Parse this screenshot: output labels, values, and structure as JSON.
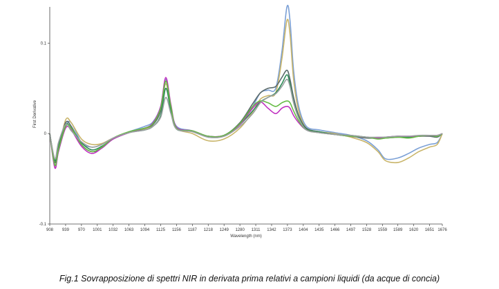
{
  "caption": "Fig.1 Sovrapposizione di spettri NIR in derivata prima relativi a campioni liquidi (da acque di concia)",
  "chart_data": {
    "type": "line",
    "xlabel": "Wavelength (nm)",
    "ylabel": "First Derivative",
    "xlim": [
      908,
      1676
    ],
    "ylim": [
      -0.1,
      0.14
    ],
    "x_ticks": [
      "908",
      "939",
      "970",
      "1001",
      "1032",
      "1063",
      "1094",
      "1125",
      "1156",
      "1187",
      "1218",
      "1249",
      "1280",
      "1311",
      "1342",
      "1373",
      "1404",
      "1435",
      "1466",
      "1497",
      "1528",
      "1559",
      "1589",
      "1620",
      "1651",
      "1676"
    ],
    "y_ticks": [
      {
        "value": -0.1,
        "label": "-0.1"
      },
      {
        "value": 0,
        "label": "0"
      },
      {
        "value": 0.1,
        "label": "0.1"
      }
    ],
    "grid": false,
    "x": [
      908,
      918,
      925,
      939,
      950,
      970,
      990,
      1010,
      1032,
      1063,
      1094,
      1110,
      1125,
      1135,
      1145,
      1156,
      1187,
      1218,
      1249,
      1280,
      1305,
      1320,
      1335,
      1350,
      1362,
      1372,
      1378,
      1385,
      1395,
      1410,
      1435,
      1466,
      1497,
      1528,
      1550,
      1565,
      1589,
      1610,
      1630,
      1651,
      1666,
      1676
    ],
    "series": [
      {
        "color": "#7ba0d6",
        "values": [
          0,
          -0.035,
          -0.02,
          0.008,
          0.012,
          -0.01,
          -0.015,
          -0.012,
          -0.005,
          0.002,
          0.008,
          0.013,
          0.03,
          0.06,
          0.03,
          0.008,
          0.003,
          -0.004,
          -0.002,
          0.01,
          0.03,
          0.045,
          0.048,
          0.05,
          0.09,
          0.14,
          0.125,
          0.07,
          0.03,
          0.008,
          0.004,
          0.001,
          -0.002,
          -0.008,
          -0.018,
          -0.028,
          -0.027,
          -0.022,
          -0.016,
          -0.012,
          -0.01,
          0
        ]
      },
      {
        "color": "#c9b56a",
        "values": [
          0,
          -0.03,
          -0.018,
          0.015,
          0.012,
          -0.006,
          -0.012,
          -0.011,
          -0.005,
          0.001,
          0.005,
          0.01,
          0.027,
          0.055,
          0.028,
          0.006,
          0,
          -0.008,
          -0.006,
          0.006,
          0.024,
          0.038,
          0.042,
          0.045,
          0.082,
          0.125,
          0.11,
          0.06,
          0.025,
          0.006,
          0.002,
          0,
          -0.004,
          -0.01,
          -0.02,
          -0.03,
          -0.032,
          -0.027,
          -0.02,
          -0.015,
          -0.012,
          0
        ]
      },
      {
        "color": "#5a6a6a",
        "values": [
          0,
          -0.032,
          -0.015,
          0.012,
          0.008,
          -0.012,
          -0.02,
          -0.016,
          -0.006,
          0.001,
          0.006,
          0.01,
          0.025,
          0.058,
          0.03,
          0.006,
          0.003,
          -0.003,
          -0.002,
          0.012,
          0.033,
          0.045,
          0.05,
          0.052,
          0.062,
          0.07,
          0.06,
          0.04,
          0.02,
          0.006,
          0.002,
          -0.001,
          -0.003,
          -0.005,
          -0.005,
          -0.005,
          -0.004,
          -0.004,
          -0.003,
          -0.003,
          -0.004,
          0
        ]
      },
      {
        "color": "#2e8b57",
        "values": [
          0,
          -0.03,
          -0.012,
          0.01,
          0.006,
          -0.01,
          -0.018,
          -0.014,
          -0.006,
          0.001,
          0.004,
          0.008,
          0.02,
          0.05,
          0.025,
          0.005,
          0.003,
          -0.003,
          -0.002,
          0.01,
          0.025,
          0.035,
          0.04,
          0.045,
          0.055,
          0.065,
          0.055,
          0.035,
          0.018,
          0.005,
          0.002,
          -0.001,
          -0.002,
          -0.004,
          -0.005,
          -0.004,
          -0.003,
          -0.004,
          -0.003,
          -0.002,
          -0.003,
          0
        ]
      },
      {
        "color": "#c030c0",
        "values": [
          0,
          -0.038,
          -0.02,
          0.006,
          0.004,
          -0.014,
          -0.022,
          -0.016,
          -0.006,
          0.001,
          0.006,
          0.012,
          0.03,
          0.062,
          0.032,
          0.007,
          0.003,
          -0.003,
          -0.002,
          0.01,
          0.028,
          0.035,
          0.028,
          0.022,
          0.028,
          0.03,
          0.028,
          0.02,
          0.012,
          0.004,
          0.001,
          -0.001,
          -0.003,
          -0.004,
          -0.005,
          -0.004,
          -0.003,
          -0.003,
          -0.003,
          -0.002,
          -0.002,
          0
        ]
      },
      {
        "color": "#66bb44",
        "values": [
          0,
          -0.035,
          -0.018,
          0.008,
          0.006,
          -0.012,
          -0.02,
          -0.015,
          -0.005,
          0.002,
          0.006,
          0.011,
          0.028,
          0.058,
          0.03,
          0.006,
          0.003,
          -0.003,
          -0.002,
          0.011,
          0.03,
          0.036,
          0.034,
          0.03,
          0.034,
          0.036,
          0.034,
          0.025,
          0.014,
          0.004,
          0.001,
          -0.001,
          -0.003,
          -0.004,
          -0.006,
          -0.005,
          -0.004,
          -0.005,
          -0.003,
          -0.002,
          -0.003,
          0
        ]
      },
      {
        "color": "#9aa0a0",
        "values": [
          0,
          -0.028,
          -0.01,
          0.01,
          0.003,
          -0.009,
          -0.015,
          -0.012,
          -0.005,
          0.001,
          0.004,
          0.008,
          0.018,
          0.04,
          0.022,
          0.005,
          0.002,
          -0.004,
          -0.003,
          0.008,
          0.022,
          0.034,
          0.04,
          0.044,
          0.052,
          0.06,
          0.052,
          0.034,
          0.017,
          0.004,
          0.001,
          -0.001,
          -0.002,
          -0.004,
          -0.004,
          -0.004,
          -0.003,
          -0.003,
          -0.002,
          -0.002,
          -0.002,
          0
        ]
      }
    ]
  }
}
